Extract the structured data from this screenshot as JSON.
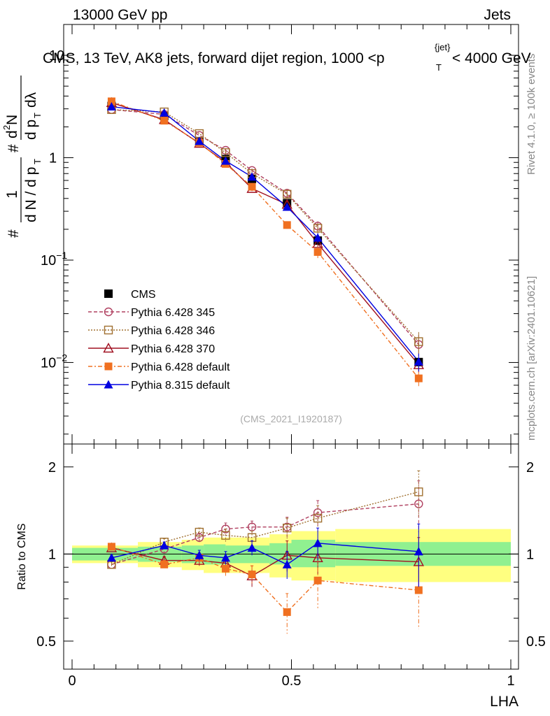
{
  "header": {
    "left": "13000 GeV pp",
    "right": "Jets"
  },
  "side_labels": {
    "rivet": "Rivet 4.1.0, ≥ 100k events",
    "mcplots": "mcplots.cern.ch [arXiv:2401.10621]"
  },
  "chart_data": {
    "type": "scatter",
    "title": "CMS, 13 TeV, AK8 jets, forward dijet region, 1000 <p_T^{jet}< 4000 GeV",
    "title_parts": {
      "pre": "CMS, 13 TeV, AK8 jets, forward dijet region, 1000 <p",
      "sub": "T",
      "sup": "{jet}",
      "post": "< 4000 GeV"
    },
    "analysis_id": "(CMS_2021_I1920187)",
    "xlabel": "LHA",
    "ylabel": "1/dN/dp_T # d^2N/dp_T dλ",
    "ylabel_parts": {
      "hash": "#",
      "one": "1",
      "den": "d N / d p",
      "den_sub": "T",
      "num": "d",
      "num_sup": "2",
      "num2": "N",
      "den2": "d p",
      "den2_sub": "T",
      "den2_tail": "dλ"
    },
    "ratio_ylabel": "Ratio to CMS",
    "xlim": [
      0,
      1
    ],
    "ylim": [
      0.0016,
      20
    ],
    "ratio_ylim": [
      0.4,
      2.4
    ],
    "xticks": [
      {
        "v": 0,
        "label": "0"
      },
      {
        "v": 0.5,
        "label": "0.5"
      },
      {
        "v": 1,
        "label": "1"
      }
    ],
    "yticks": [
      {
        "v": 0.01,
        "base": "10",
        "exp": "−2"
      },
      {
        "v": 0.1,
        "base": "10",
        "exp": "−1"
      },
      {
        "v": 1,
        "base": "1",
        "exp": ""
      },
      {
        "v": 10,
        "base": "10",
        "exp": ""
      }
    ],
    "ratio_yticks": [
      {
        "v": 0.5,
        "label": "0.5"
      },
      {
        "v": 1,
        "label": "1"
      },
      {
        "v": 2,
        "label": "2"
      }
    ],
    "bins": [
      [
        0,
        0.15
      ],
      [
        0.15,
        0.25
      ],
      [
        0.25,
        0.3
      ],
      [
        0.3,
        0.35
      ],
      [
        0.35,
        0.45
      ],
      [
        0.45,
        0.5
      ],
      [
        0.5,
        0.6
      ],
      [
        0.6,
        1.0
      ]
    ],
    "x": [
      0.09,
      0.21,
      0.29,
      0.35,
      0.41,
      0.49,
      0.56,
      0.79
    ],
    "band_inner": [
      [
        0.95,
        1.05
      ],
      [
        0.94,
        1.06
      ],
      [
        0.93,
        1.07
      ],
      [
        0.92,
        1.08
      ],
      [
        0.93,
        1.07
      ],
      [
        0.92,
        1.09
      ],
      [
        0.9,
        1.12
      ],
      [
        0.91,
        1.1
      ]
    ],
    "band_outer": [
      [
        0.93,
        1.07
      ],
      [
        0.9,
        1.1
      ],
      [
        0.88,
        1.12
      ],
      [
        0.86,
        1.14
      ],
      [
        0.86,
        1.14
      ],
      [
        0.83,
        1.17
      ],
      [
        0.81,
        1.2
      ],
      [
        0.8,
        1.22
      ]
    ],
    "series": [
      {
        "name": "CMS",
        "color": "#000000",
        "marker": "square-filled",
        "dash": "",
        "values": [
          3.2,
          2.55,
          1.45,
          0.97,
          0.62,
          0.36,
          0.155,
          0.0101
        ]
      },
      {
        "name": "Pythia 6.428 345",
        "color": "#b04060",
        "marker": "circle-open",
        "dash": "5,3",
        "values": [
          2.95,
          2.65,
          1.65,
          1.18,
          0.75,
          0.45,
          0.215,
          0.015
        ],
        "ratio": [
          0.92,
          1.04,
          1.14,
          1.22,
          1.24,
          1.24,
          1.39,
          1.49
        ],
        "ratio_err": [
          0.02,
          0.03,
          0.04,
          0.06,
          0.06,
          0.1,
          0.14,
          0.3
        ]
      },
      {
        "name": "Pythia 6.428 346",
        "color": "#a07030",
        "marker": "square-open",
        "dash": "2,2",
        "values": [
          2.95,
          2.8,
          1.72,
          1.12,
          0.7,
          0.44,
          0.205,
          0.016
        ],
        "ratio": [
          0.92,
          1.1,
          1.19,
          1.16,
          1.14,
          1.23,
          1.33,
          1.64
        ],
        "ratio_err": [
          0.02,
          0.03,
          0.04,
          0.06,
          0.06,
          0.1,
          0.14,
          0.3
        ]
      },
      {
        "name": "Pythia 6.428 370",
        "color": "#a01020",
        "marker": "triangle-open",
        "dash": "",
        "values": [
          3.45,
          2.35,
          1.38,
          0.9,
          0.5,
          0.35,
          0.145,
          0.0095
        ],
        "ratio": [
          1.05,
          0.95,
          0.95,
          0.93,
          0.84,
          0.99,
          0.97,
          0.94
        ],
        "ratio_err": [
          0.02,
          0.03,
          0.04,
          0.05,
          0.07,
          0.12,
          0.12,
          0.2
        ]
      },
      {
        "name": "Pythia 6.428 default",
        "color": "#f07020",
        "marker": "square-filled",
        "dash": "6,3,2,3",
        "values": [
          3.55,
          2.3,
          1.4,
          0.87,
          0.52,
          0.22,
          0.12,
          0.007
        ],
        "ratio": [
          1.06,
          0.92,
          0.97,
          0.89,
          0.85,
          0.63,
          0.81,
          0.75
        ],
        "ratio_err": [
          0.02,
          0.03,
          0.04,
          0.05,
          0.06,
          0.1,
          0.16,
          0.2
        ]
      },
      {
        "name": "Pythia 8.315 default",
        "color": "#0000e0",
        "marker": "triangle-filled",
        "dash": "",
        "values": [
          3.15,
          2.75,
          1.45,
          0.93,
          0.65,
          0.33,
          0.165,
          0.0102
        ],
        "ratio": [
          0.97,
          1.07,
          0.99,
          0.97,
          1.05,
          0.92,
          1.09,
          1.02
        ],
        "ratio_err": [
          0.02,
          0.03,
          0.04,
          0.05,
          0.06,
          0.1,
          0.14,
          0.25
        ]
      }
    ]
  }
}
